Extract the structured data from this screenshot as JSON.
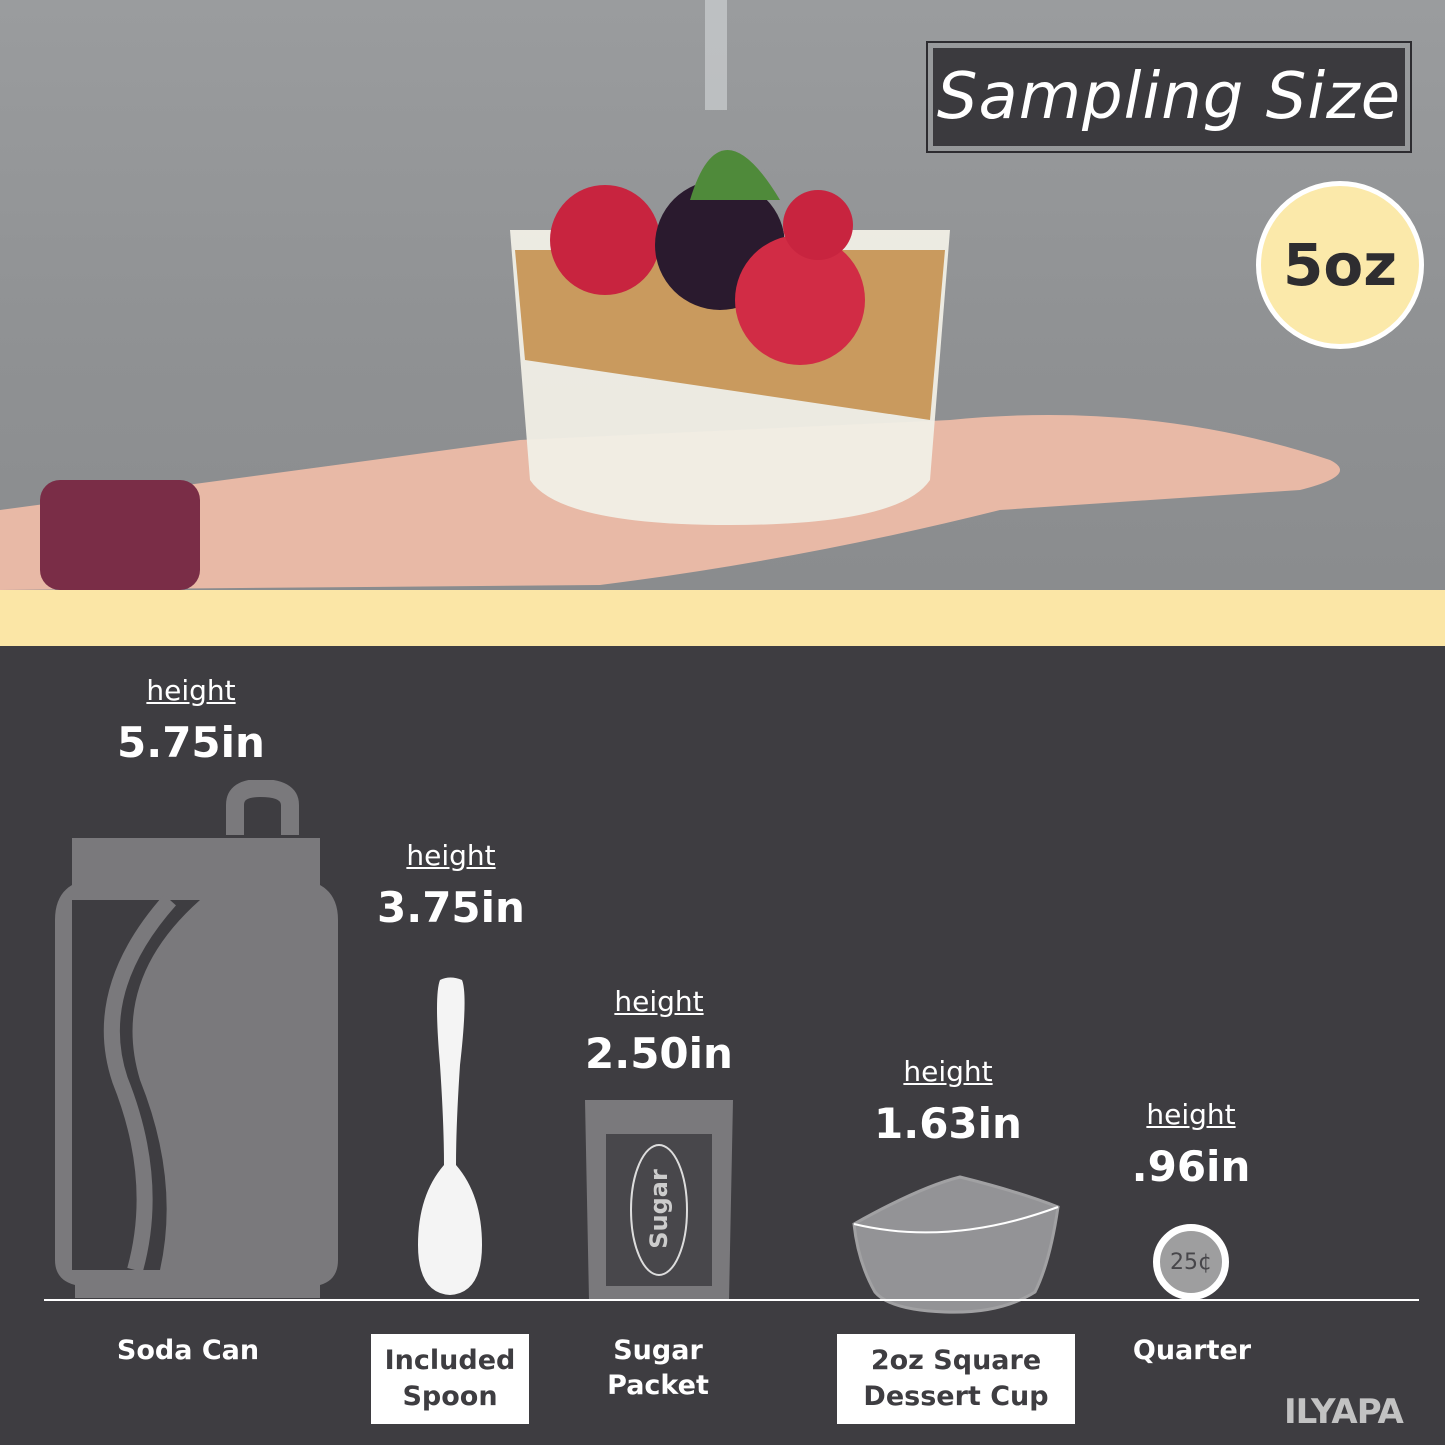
{
  "header": {
    "title": "Sampling Size",
    "capacity_badge": "5oz"
  },
  "colors": {
    "accent_yellow": "#fbe6a6",
    "dark_bg": "#3e3d41",
    "icon_gray": "#7a797c"
  },
  "items": [
    {
      "name": "Soda Can",
      "height_label": "height",
      "height_value": "5.75in",
      "icon": "soda-can-icon"
    },
    {
      "name": "Included Spoon",
      "height_label": "height",
      "height_value": "3.75in",
      "icon": "spoon-icon"
    },
    {
      "name": "Sugar Packet",
      "height_label": "height",
      "height_value": "2.50in",
      "icon": "sugar-packet-icon",
      "packet_text": "Sugar"
    },
    {
      "name": "2oz Square Dessert Cup",
      "height_label": "height",
      "height_value": "1.63in",
      "icon": "square-cup-icon"
    },
    {
      "name": "Quarter",
      "height_label": "height",
      "height_value": ".96in",
      "icon": "quarter-coin-icon",
      "coin_text": "25¢"
    }
  ],
  "brand": {
    "logo": "ILYAPA"
  }
}
